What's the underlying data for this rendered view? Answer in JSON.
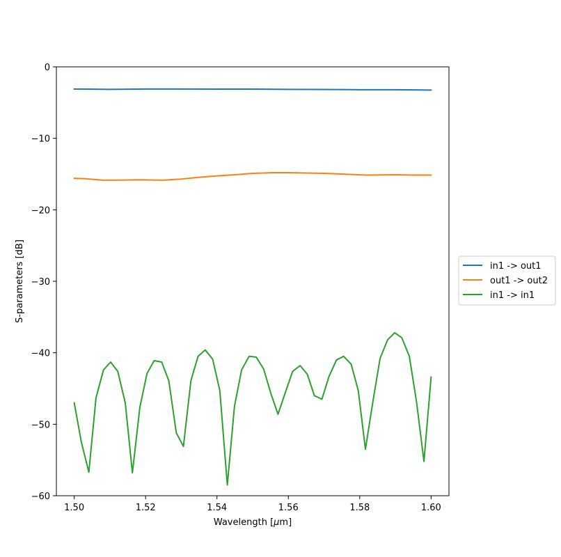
{
  "chart_data": {
    "type": "line",
    "xlabel_prefix": "Wavelength [",
    "xlabel_mu": "μ",
    "xlabel_suffix": "m]",
    "ylabel": "S-parameters [dB]",
    "xlim": [
      1.495,
      1.605
    ],
    "ylim": [
      -60,
      0
    ],
    "xticks": [
      1.5,
      1.52,
      1.54,
      1.56,
      1.58,
      1.6
    ],
    "xtick_labels": [
      "1.50",
      "1.52",
      "1.54",
      "1.56",
      "1.58",
      "1.60"
    ],
    "yticks": [
      0,
      -10,
      -20,
      -30,
      -40,
      -50,
      -60
    ],
    "ytick_labels": [
      "0",
      "−10",
      "−20",
      "−30",
      "−40",
      "−50",
      "−60"
    ],
    "grid": false,
    "legend_position": "right",
    "series": [
      {
        "name": "in1 -> out1",
        "color": "#1f77b4",
        "x": [
          1.5,
          1.51,
          1.52,
          1.53,
          1.54,
          1.55,
          1.56,
          1.57,
          1.58,
          1.59,
          1.6
        ],
        "y": [
          -3.1,
          -3.15,
          -3.1,
          -3.1,
          -3.12,
          -3.12,
          -3.15,
          -3.17,
          -3.2,
          -3.2,
          -3.25
        ]
      },
      {
        "name": "out1 -> out2",
        "color": "#ff7f0e",
        "x": [
          1.5,
          1.503,
          1.508,
          1.512,
          1.518,
          1.525,
          1.53,
          1.535,
          1.54,
          1.545,
          1.55,
          1.556,
          1.56,
          1.565,
          1.57,
          1.575,
          1.582,
          1.59,
          1.595,
          1.6
        ],
        "y": [
          -15.6,
          -15.65,
          -15.85,
          -15.85,
          -15.8,
          -15.85,
          -15.7,
          -15.45,
          -15.25,
          -15.1,
          -14.9,
          -14.8,
          -14.8,
          -14.85,
          -14.9,
          -15.0,
          -15.15,
          -15.1,
          -15.15,
          -15.15
        ]
      },
      {
        "name": "in1 -> in1",
        "color": "#2ca02c",
        "x": [
          1.5,
          1.502,
          1.5041,
          1.5061,
          1.5082,
          1.5102,
          1.5122,
          1.5143,
          1.5163,
          1.5184,
          1.5204,
          1.5224,
          1.5245,
          1.5265,
          1.5286,
          1.5306,
          1.5327,
          1.5347,
          1.5367,
          1.5388,
          1.5408,
          1.5429,
          1.5449,
          1.5469,
          1.549,
          1.551,
          1.5531,
          1.5551,
          1.5571,
          1.5592,
          1.5612,
          1.5633,
          1.5653,
          1.5673,
          1.5694,
          1.5714,
          1.5735,
          1.5755,
          1.5776,
          1.5796,
          1.5816,
          1.5837,
          1.5857,
          1.5878,
          1.5898,
          1.5918,
          1.5939,
          1.5959,
          1.598,
          1.6
        ],
        "y": [
          -47.0,
          -52.5,
          -56.7,
          -46.3,
          -42.4,
          -41.3,
          -42.6,
          -47.0,
          -56.8,
          -47.6,
          -42.9,
          -41.1,
          -41.3,
          -43.9,
          -51.2,
          -53.1,
          -43.9,
          -40.5,
          -39.6,
          -40.9,
          -45.3,
          -58.5,
          -47.5,
          -42.4,
          -40.5,
          -40.6,
          -42.3,
          -45.7,
          -48.6,
          -45.5,
          -42.6,
          -41.8,
          -43.0,
          -46.0,
          -46.5,
          -43.3,
          -41.0,
          -40.5,
          -41.6,
          -45.3,
          -53.5,
          -46.8,
          -40.8,
          -38.2,
          -37.2,
          -37.9,
          -40.5,
          -46.8,
          -55.2,
          -43.4
        ]
      }
    ]
  }
}
